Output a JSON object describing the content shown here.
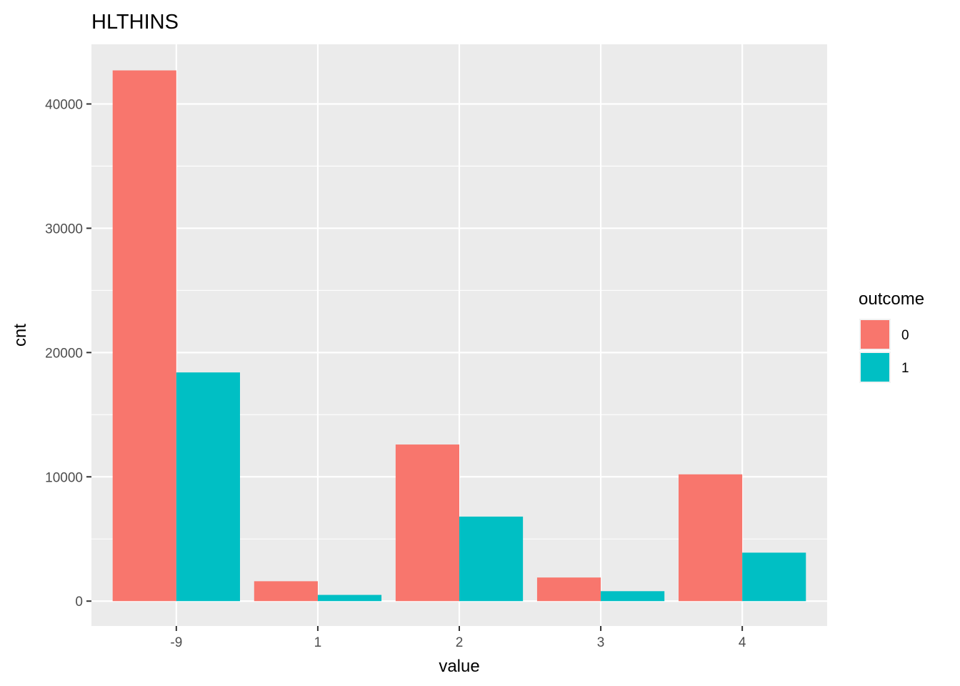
{
  "chart_data": {
    "type": "bar",
    "title": "HLTHINS",
    "xlabel": "value",
    "ylabel": "cnt",
    "categories": [
      "-9",
      "1",
      "2",
      "3",
      "4"
    ],
    "series": [
      {
        "name": "0",
        "color": "#F8766D",
        "values": [
          42700,
          1600,
          12600,
          1900,
          10200
        ]
      },
      {
        "name": "1",
        "color": "#00BFC4",
        "values": [
          18400,
          500,
          6800,
          800,
          3900
        ]
      }
    ],
    "yticks": [
      0,
      10000,
      20000,
      30000,
      40000
    ],
    "ylim": [
      -2000,
      44800
    ],
    "legend": {
      "title": "outcome",
      "position": "right"
    },
    "grid": true,
    "panel_background": "#EBEBEB"
  }
}
